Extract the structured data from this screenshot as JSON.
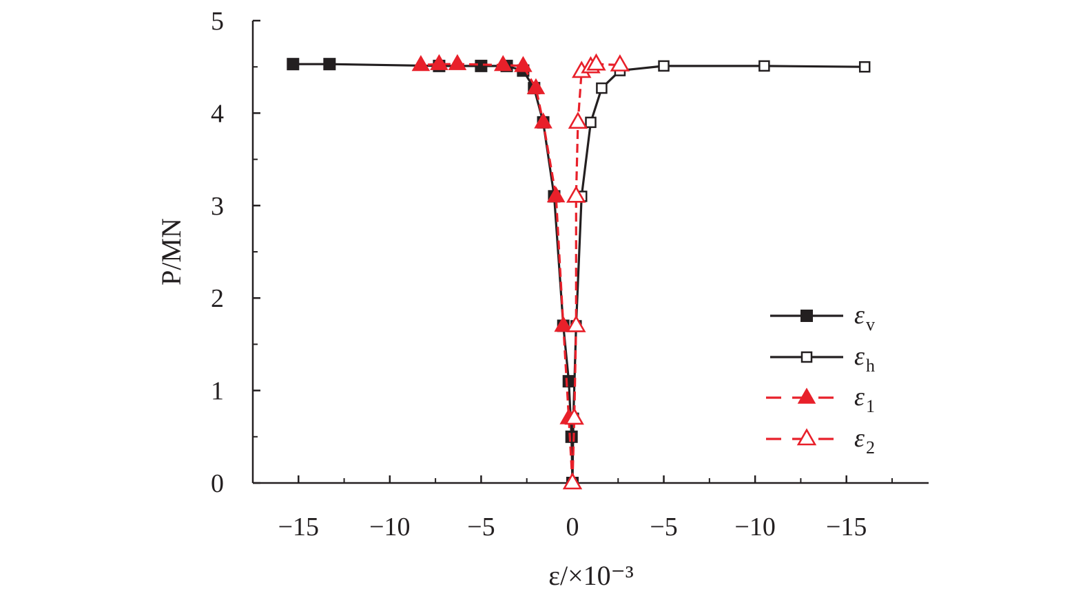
{
  "chart_data": {
    "type": "line",
    "xlabel": "ε/×10⁻³",
    "ylabel": "P/MN",
    "x_tick_labels": [
      "−15",
      "−10",
      "−5",
      "0",
      "−5",
      "−10",
      "−15"
    ],
    "x_tick_note": "x axis is mirrored: left half for ε_v and ε_1 (compressive), right half for ε_h and ε_2 (tensile); tick labels read −15, −10, −5, 0, −5, −10, −15",
    "xlim": [
      -17.5,
      19.5
    ],
    "ylim": [
      0,
      5
    ],
    "y_ticks": [
      0,
      1,
      2,
      3,
      4,
      5
    ],
    "grid": false,
    "legend_position": "bottom-right",
    "series": [
      {
        "name": "ε_v",
        "name_main": "ε",
        "name_sub": "v",
        "color": "#231f20",
        "line_style": "solid",
        "marker": "filled-square",
        "x": [
          0,
          -0.05,
          -0.2,
          -0.5,
          -1.0,
          -1.6,
          -2.1,
          -2.7,
          -3.6,
          -5.0,
          -7.3,
          -13.3,
          -15.3
        ],
        "y": [
          0,
          0.5,
          1.1,
          1.7,
          3.1,
          3.9,
          4.27,
          4.46,
          4.51,
          4.51,
          4.51,
          4.53,
          4.53
        ]
      },
      {
        "name": "ε_h",
        "name_main": "ε",
        "name_sub": "h",
        "color": "#231f20",
        "line_style": "solid",
        "marker": "open-square",
        "x": [
          0,
          0.05,
          0.2,
          0.5,
          1.0,
          1.6,
          2.6,
          5.0,
          10.5,
          16.0
        ],
        "y": [
          0,
          0.7,
          1.7,
          3.1,
          3.9,
          4.27,
          4.46,
          4.51,
          4.51,
          4.5
        ]
      },
      {
        "name": "ε_1",
        "name_main": "ε",
        "name_sub": "1",
        "color": "#e8202a",
        "line_style": "dashed",
        "marker": "filled-triangle",
        "x": [
          0,
          -0.2,
          -0.5,
          -0.9,
          -1.6,
          -2.0,
          -2.7,
          -3.8,
          -6.3,
          -7.3,
          -8.3
        ],
        "y": [
          0,
          0.7,
          1.7,
          3.1,
          3.9,
          4.27,
          4.51,
          4.52,
          4.53,
          4.53,
          4.52
        ]
      },
      {
        "name": "ε_2",
        "name_main": "ε",
        "name_sub": "2",
        "color": "#e8202a",
        "line_style": "dashed",
        "marker": "open-triangle",
        "x": [
          0,
          0.1,
          0.2,
          0.2,
          0.3,
          0.5,
          1.0,
          1.3,
          2.6
        ],
        "y": [
          0,
          0.7,
          1.7,
          3.1,
          3.9,
          4.45,
          4.5,
          4.53,
          4.52
        ]
      }
    ]
  }
}
